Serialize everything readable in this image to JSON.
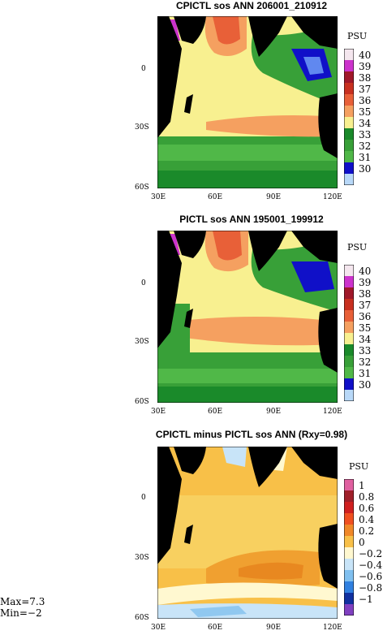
{
  "panels": [
    {
      "title": "CPICTL sos ANN 206001_210912",
      "unit": "PSU",
      "colorbar": [
        "40",
        "39",
        "38",
        "37",
        "36",
        "35",
        "34",
        "33",
        "32",
        "31",
        "30"
      ],
      "colors": [
        "#ffffff",
        "#f4e6ee",
        "#cc33cc",
        "#a0182a",
        "#c83020",
        "#e86038",
        "#f5a060",
        "#f8f090",
        "#1a8a2a",
        "#38a038",
        "#50b848",
        "#1010c8",
        "#6088f0",
        "#b8d8f8",
        "#ffffff"
      ],
      "lat_ticks": [
        "0",
        "30S",
        "60S"
      ],
      "lon_ticks": [
        "30E",
        "60E",
        "90E",
        "120E"
      ]
    },
    {
      "title": "PICTL sos ANN 195001_199912",
      "unit": "PSU",
      "colorbar": [
        "40",
        "39",
        "38",
        "37",
        "36",
        "35",
        "34",
        "33",
        "32",
        "31",
        "30"
      ],
      "lat_ticks": [
        "0",
        "30S",
        "60S"
      ],
      "lon_ticks": [
        "30E",
        "60E",
        "90E",
        "120E"
      ]
    },
    {
      "title": "CPICTL minus PICTL sos ANN (Rxy=0.98)",
      "unit": "PSU",
      "colorbar": [
        "1",
        "0.8",
        "0.6",
        "0.4",
        "0.2",
        "0",
        "−0.2",
        "−0.4",
        "−0.6",
        "−0.8",
        "−1"
      ],
      "lat_ticks": [
        "0",
        "30S",
        "60S"
      ],
      "lon_ticks": [
        "30E",
        "60E",
        "90E",
        "120E"
      ]
    }
  ],
  "stats": {
    "max": "Max=7.3",
    "min": "Min=−2"
  },
  "land_color": "#000000"
}
